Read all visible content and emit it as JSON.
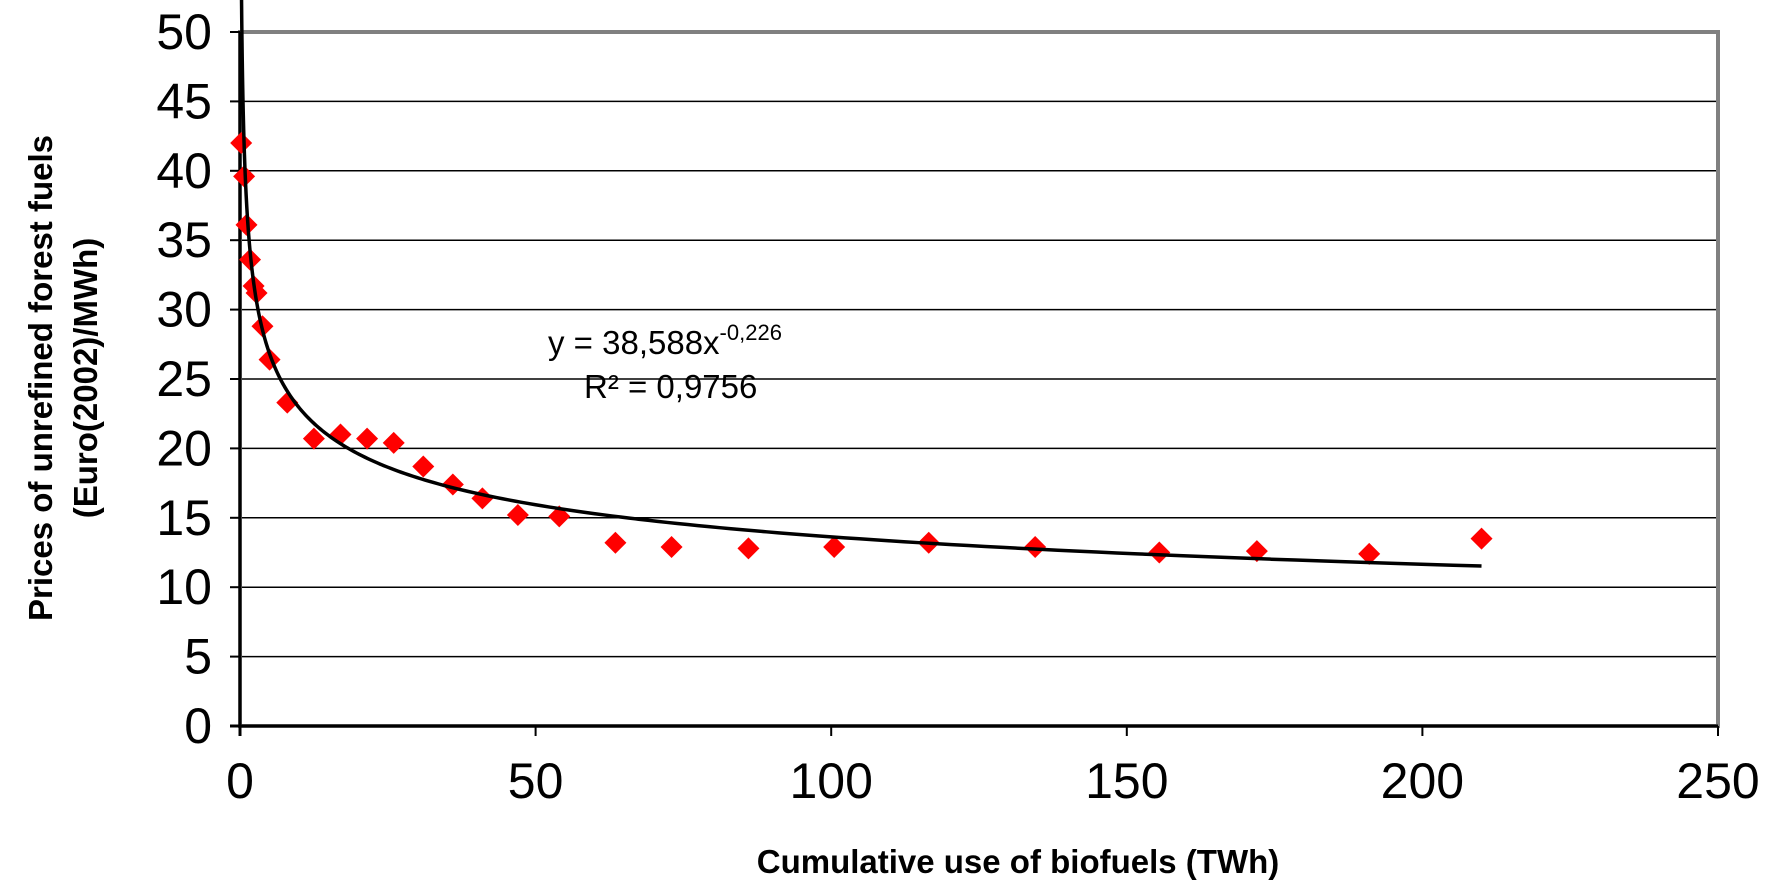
{
  "chart_data": {
    "type": "scatter",
    "title": "",
    "xlabel": "Cumulative use of biofuels (TWh)",
    "ylabel_line1": "Prices of unrefined forest fuels",
    "ylabel_line2": "(Euro(2002)/MWh)",
    "xlim": [
      0,
      250
    ],
    "ylim": [
      0,
      50
    ],
    "x_ticks": [
      0,
      50,
      100,
      150,
      200,
      250
    ],
    "y_ticks": [
      0,
      5,
      10,
      15,
      20,
      25,
      30,
      35,
      40,
      45,
      50
    ],
    "grid": "horizontal",
    "series": [
      {
        "marker": "diamond",
        "color": "#ff0000",
        "points": [
          {
            "x": 0.2,
            "y": 42.0
          },
          {
            "x": 0.7,
            "y": 39.6
          },
          {
            "x": 1.1,
            "y": 36.1
          },
          {
            "x": 1.7,
            "y": 33.6
          },
          {
            "x": 2.3,
            "y": 31.7
          },
          {
            "x": 2.8,
            "y": 31.2
          },
          {
            "x": 3.8,
            "y": 28.8
          },
          {
            "x": 5.0,
            "y": 26.4
          },
          {
            "x": 8.0,
            "y": 23.3
          },
          {
            "x": 12.5,
            "y": 20.7
          },
          {
            "x": 17.0,
            "y": 21.0
          },
          {
            "x": 21.5,
            "y": 20.7
          },
          {
            "x": 26.0,
            "y": 20.4
          },
          {
            "x": 31.0,
            "y": 18.7
          },
          {
            "x": 36.0,
            "y": 17.4
          },
          {
            "x": 41.0,
            "y": 16.4
          },
          {
            "x": 47.0,
            "y": 15.2
          },
          {
            "x": 54.0,
            "y": 15.1
          },
          {
            "x": 63.5,
            "y": 13.2
          },
          {
            "x": 73.0,
            "y": 12.9
          },
          {
            "x": 86.0,
            "y": 12.8
          },
          {
            "x": 100.5,
            "y": 12.9
          },
          {
            "x": 116.5,
            "y": 13.2
          },
          {
            "x": 134.5,
            "y": 12.9
          },
          {
            "x": 155.5,
            "y": 12.5
          },
          {
            "x": 172.0,
            "y": 12.6
          },
          {
            "x": 191.0,
            "y": 12.4
          },
          {
            "x": 210.0,
            "y": 13.5
          }
        ]
      }
    ],
    "trendline": {
      "type": "power",
      "a": 38.588,
      "b": -0.226,
      "x_range": [
        0.2,
        210
      ],
      "color": "#000000"
    },
    "annotations": {
      "equation_main": "y = 38,588x",
      "equation_exponent": "-0,226",
      "r_squared": "R² = 0,9756"
    }
  }
}
